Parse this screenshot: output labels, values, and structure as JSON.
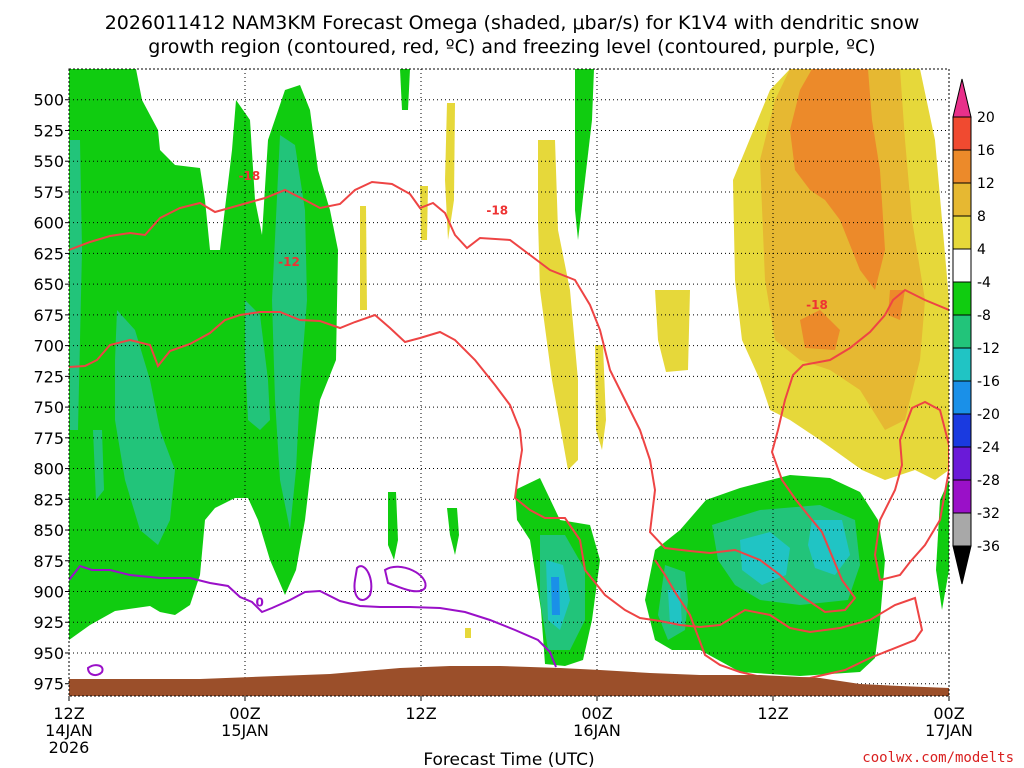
{
  "chart_data": {
    "type": "contour",
    "title_line1": "2026011412 NAM3KM Forecast Omega (shaded, μbar/s) for K1V4 with dendritic snow",
    "title_line2": "growth region (contoured, red, ºC) and freezing level (contoured, purple, ºC)",
    "xlabel": "Forecast Time (UTC)",
    "credit": "coolwx.com/modelts",
    "x_range_hours": [
      0,
      60
    ],
    "x_ticks": [
      {
        "hour": 0,
        "line1": "12Z",
        "line2": "14JAN",
        "line3": "2026"
      },
      {
        "hour": 12,
        "line1": "00Z",
        "line2": "15JAN",
        "line3": ""
      },
      {
        "hour": 24,
        "line1": "12Z",
        "line2": "",
        "line3": ""
      },
      {
        "hour": 36,
        "line1": "00Z",
        "line2": "16JAN",
        "line3": ""
      },
      {
        "hour": 48,
        "line1": "12Z",
        "line2": "",
        "line3": ""
      },
      {
        "hour": 60,
        "line1": "00Z",
        "line2": "17JAN",
        "line3": ""
      }
    ],
    "y_range_hpa": [
      985,
      475
    ],
    "y_ticks": [
      500,
      525,
      550,
      575,
      600,
      625,
      650,
      675,
      700,
      725,
      750,
      775,
      800,
      825,
      850,
      875,
      900,
      925,
      950,
      975
    ],
    "colorbar": {
      "labels": [
        "20",
        "16",
        "12",
        "8",
        "4",
        "-4",
        "-8",
        "-12",
        "-16",
        "-20",
        "-24",
        "-28",
        "-32",
        "-36"
      ],
      "colors": [
        "#e8308a",
        "#f04a30",
        "#ec8a2a",
        "#e6b832",
        "#e6d83a",
        "#ffffff",
        "#10cc10",
        "#22c47a",
        "#20c4c4",
        "#1a90e8",
        "#1a3ae0",
        "#6a1ad8",
        "#9a10c8",
        "#a8a8a8",
        "#000000"
      ]
    },
    "contour_labels": [
      {
        "text": "-18",
        "hour": 12.3,
        "hpa": 562,
        "color": "#ee3333"
      },
      {
        "text": "-18",
        "hour": 29.2,
        "hpa": 590,
        "color": "#ee3333"
      },
      {
        "text": "-12",
        "hour": 15.0,
        "hpa": 632,
        "color": "#ee3333"
      },
      {
        "text": "-18",
        "hour": 51.0,
        "hpa": 667,
        "color": "#ee3333"
      },
      {
        "text": "0",
        "hour": 13.0,
        "hpa": 909,
        "color": "#9a10c8"
      }
    ],
    "terrain_color": "#9b4f2a"
  }
}
